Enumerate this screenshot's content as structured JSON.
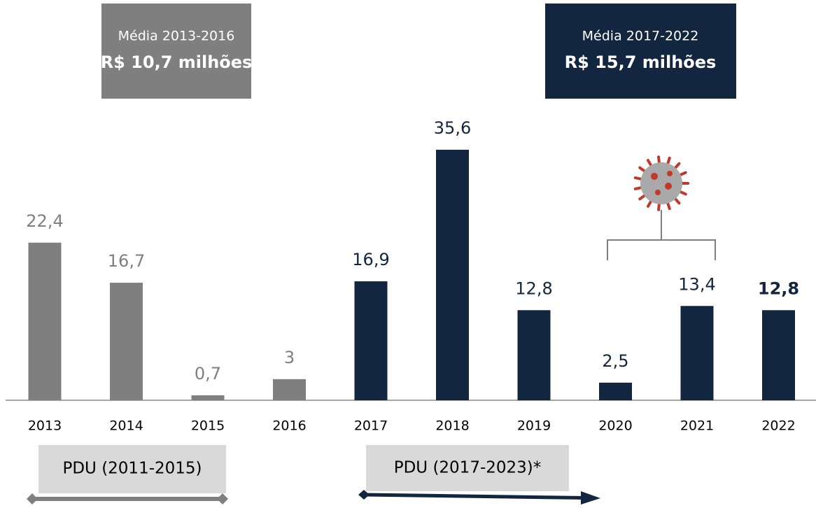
{
  "chart_data": {
    "type": "bar",
    "categories": [
      "2013",
      "2014",
      "2015",
      "2016",
      "2017",
      "2018",
      "2019",
      "2020",
      "2021",
      "2022"
    ],
    "values": [
      22.4,
      16.7,
      0.7,
      3,
      16.9,
      35.6,
      12.8,
      2.5,
      13.4,
      12.8
    ],
    "value_labels": [
      "22,4",
      "16,7",
      "0,7",
      "3",
      "16,9",
      "35,6",
      "12,8",
      "2,5",
      "13,4",
      "12,8"
    ],
    "colors": [
      "#7f7f7f",
      "#7f7f7f",
      "#7f7f7f",
      "#7f7f7f",
      "#13263f",
      "#13263f",
      "#13263f",
      "#13263f",
      "#13263f",
      "#13263f"
    ],
    "ylim": [
      0,
      36
    ],
    "averages": [
      {
        "period": "Média 2013-2016",
        "value": "R$ 10,7 milhões",
        "color": "#7f7f7f"
      },
      {
        "period": "Média 2017-2022",
        "value": "R$ 15,7 milhões",
        "color": "#13263f"
      }
    ],
    "plans": [
      "PDU (2011-2015)",
      "PDU (2017-2023)*"
    ]
  }
}
